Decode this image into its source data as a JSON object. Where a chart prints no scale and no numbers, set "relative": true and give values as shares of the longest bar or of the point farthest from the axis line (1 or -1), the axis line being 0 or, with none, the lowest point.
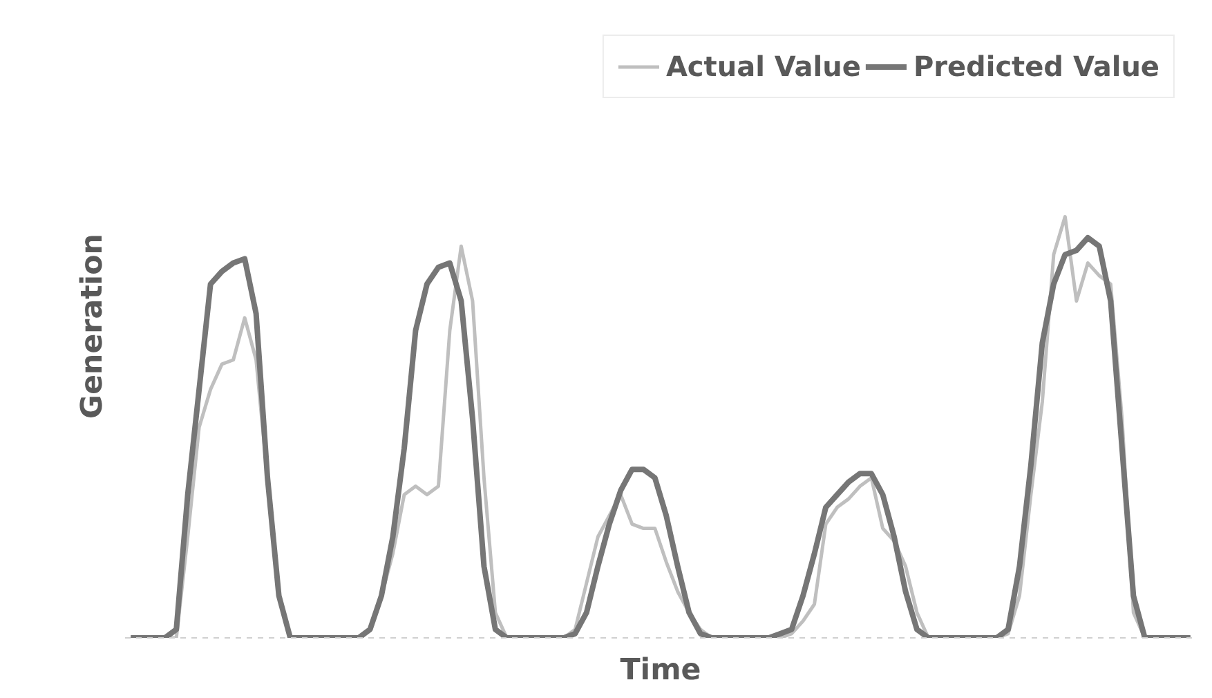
{
  "chart_data": {
    "type": "line",
    "relative": true,
    "xlabel": "Time",
    "ylabel": "Generation",
    "categories": [
      null,
      null,
      null,
      null,
      null,
      null,
      null,
      null,
      null,
      null,
      null,
      null,
      null,
      null,
      null,
      null,
      null,
      null,
      null,
      null,
      null,
      null,
      null,
      null,
      null,
      null,
      null,
      null,
      null,
      null,
      null,
      null,
      null,
      null,
      null,
      null,
      null,
      null,
      null,
      null,
      null,
      null,
      null,
      null,
      null,
      null,
      null,
      null,
      null,
      null,
      null,
      null,
      null,
      null,
      null,
      null,
      null,
      null,
      null,
      null,
      null,
      null,
      null,
      null,
      null,
      null,
      null,
      null,
      null,
      null,
      null,
      null,
      null,
      null,
      null,
      null,
      null,
      null,
      null,
      null,
      null,
      null,
      null,
      null,
      null,
      null,
      null,
      null,
      null,
      null,
      null,
      null,
      null,
      null
    ],
    "series": [
      {
        "name": "Actual Value",
        "color": "#bfbfbf",
        "values": [
          0,
          0,
          0,
          0,
          0,
          0.24,
          0.5,
          0.59,
          0.65,
          0.66,
          0.76,
          0.66,
          0.38,
          0.1,
          0,
          0,
          0,
          0,
          0,
          0,
          0,
          0.02,
          0.1,
          0.2,
          0.34,
          0.36,
          0.34,
          0.36,
          0.73,
          0.93,
          0.8,
          0.38,
          0.06,
          0,
          0,
          0,
          0,
          0,
          0,
          0.02,
          0.13,
          0.24,
          0.29,
          0.34,
          0.27,
          0.26,
          0.26,
          0.18,
          0.11,
          0.06,
          0.02,
          0,
          0,
          0,
          0,
          0,
          0,
          0,
          0.01,
          0.04,
          0.08,
          0.27,
          0.31,
          0.33,
          0.36,
          0.38,
          0.26,
          0.23,
          0.17,
          0.06,
          0,
          0,
          0,
          0,
          0,
          0,
          0,
          0.01,
          0.1,
          0.34,
          0.56,
          0.91,
          1.0,
          0.8,
          0.89,
          0.86,
          0.84,
          0.52,
          0.06,
          0,
          0,
          0,
          0,
          0
        ]
      },
      {
        "name": "Predicted Value",
        "color": "#767676",
        "values": [
          0,
          0,
          0,
          0,
          0.02,
          0.34,
          0.59,
          0.84,
          0.87,
          0.89,
          0.9,
          0.77,
          0.38,
          0.1,
          0,
          0,
          0,
          0,
          0,
          0,
          0,
          0.02,
          0.1,
          0.24,
          0.45,
          0.73,
          0.84,
          0.88,
          0.89,
          0.8,
          0.52,
          0.17,
          0.02,
          0,
          0,
          0,
          0,
          0,
          0,
          0.01,
          0.06,
          0.17,
          0.27,
          0.35,
          0.4,
          0.4,
          0.38,
          0.29,
          0.17,
          0.06,
          0.01,
          0,
          0,
          0,
          0,
          0,
          0,
          0.01,
          0.02,
          0.1,
          0.2,
          0.31,
          0.34,
          0.37,
          0.39,
          0.39,
          0.34,
          0.24,
          0.11,
          0.02,
          0,
          0,
          0,
          0,
          0,
          0,
          0,
          0.02,
          0.17,
          0.41,
          0.7,
          0.84,
          0.91,
          0.92,
          0.95,
          0.93,
          0.8,
          0.45,
          0.1,
          0,
          0,
          0,
          0,
          0
        ]
      }
    ],
    "legend": "top right",
    "marker": "none",
    "line_style": "solid"
  }
}
